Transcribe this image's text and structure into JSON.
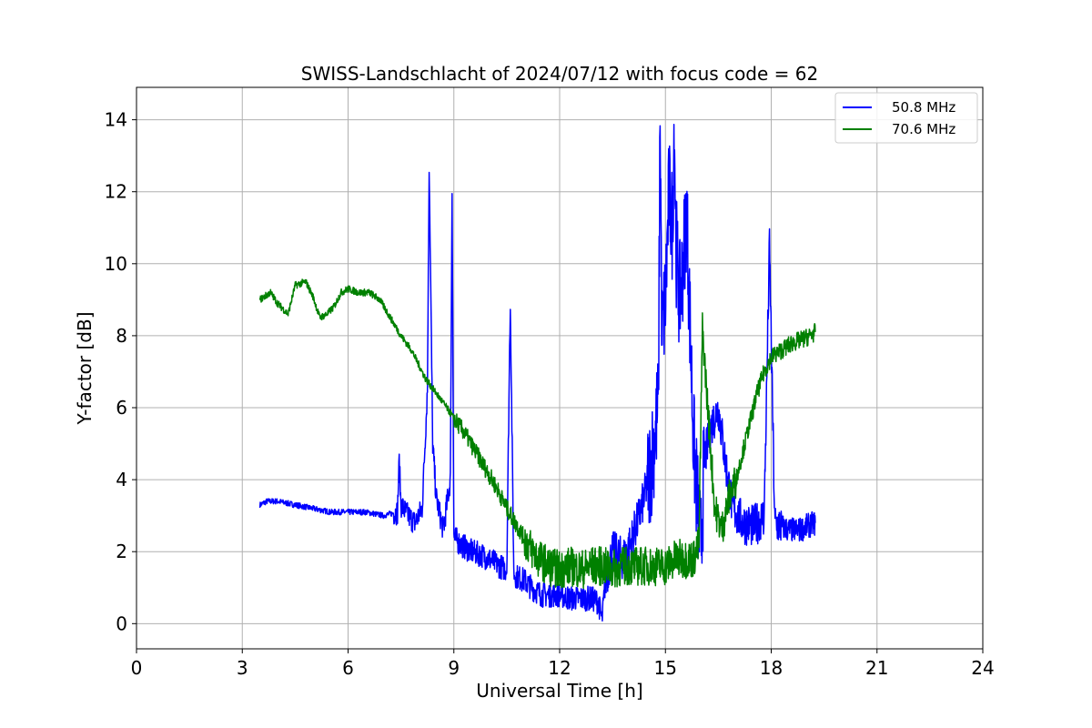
{
  "chart_data": {
    "type": "line",
    "title": "SWISS-Landschlacht of 2024/07/12 with focus code = 62",
    "xlabel": "Universal Time [h]",
    "ylabel": "Y-factor [dB]",
    "xlim": [
      0,
      24
    ],
    "ylim": [
      -0.7,
      14.9
    ],
    "xticks": [
      0,
      3,
      6,
      9,
      12,
      15,
      18,
      21,
      24
    ],
    "xtick_labels": [
      "0",
      "3",
      "6",
      "9",
      "12",
      "15",
      "18",
      "21",
      "24"
    ],
    "yticks": [
      0,
      2,
      4,
      6,
      8,
      10,
      12,
      14
    ],
    "ytick_labels": [
      "0",
      "2",
      "4",
      "6",
      "8",
      "10",
      "12",
      "14"
    ],
    "grid": true,
    "legend_position": "top-right",
    "series": [
      {
        "name": "50.8 MHz",
        "color": "#0000ff",
        "x": [
          3.5,
          3.7,
          4.0,
          4.5,
          5.0,
          5.5,
          6.0,
          6.5,
          7.0,
          7.4,
          7.45,
          7.5,
          7.7,
          7.9,
          8.1,
          8.25,
          8.3,
          8.4,
          8.5,
          8.7,
          8.9,
          8.95,
          9.0,
          9.2,
          9.5,
          9.8,
          10.0,
          10.3,
          10.5,
          10.6,
          10.7,
          10.8,
          11.0,
          11.2,
          11.5,
          11.8,
          12.0,
          12.3,
          12.6,
          12.9,
          13.1,
          13.2,
          13.3,
          13.5,
          13.8,
          14.0,
          14.2,
          14.4,
          14.6,
          14.8,
          14.85,
          14.9,
          15.0,
          15.1,
          15.2,
          15.25,
          15.3,
          15.4,
          15.5,
          15.6,
          15.8,
          16.0,
          16.1,
          16.3,
          16.5,
          16.7,
          16.9,
          17.2,
          17.5,
          17.8,
          17.95,
          18.1,
          18.3,
          18.5,
          18.8,
          19.0,
          19.25
        ],
        "y": [
          3.3,
          3.4,
          3.4,
          3.3,
          3.2,
          3.1,
          3.1,
          3.1,
          3.0,
          3.1,
          4.5,
          3.3,
          3.0,
          2.8,
          3.2,
          6.5,
          12.8,
          5.0,
          3.5,
          2.6,
          4.0,
          12.0,
          2.4,
          2.2,
          2.0,
          1.9,
          1.8,
          1.6,
          1.5,
          9.0,
          1.4,
          1.3,
          1.2,
          1.0,
          0.8,
          0.8,
          0.8,
          0.7,
          0.7,
          0.7,
          0.6,
          0.1,
          1.2,
          2.0,
          1.8,
          2.2,
          2.8,
          3.5,
          4.5,
          6.0,
          14.2,
          8.0,
          9.0,
          12.0,
          11.0,
          14.1,
          10.5,
          9.0,
          10.0,
          11.5,
          5.0,
          2.0,
          4.5,
          5.5,
          6.0,
          4.5,
          3.2,
          2.8,
          2.7,
          3.0,
          10.5,
          2.8,
          2.7,
          2.6,
          2.6,
          2.7,
          2.8
        ]
      },
      {
        "name": "70.6 MHz",
        "color": "#008000",
        "x": [
          3.5,
          3.8,
          4.0,
          4.3,
          4.5,
          4.8,
          5.0,
          5.2,
          5.4,
          5.6,
          5.8,
          6.0,
          6.3,
          6.6,
          6.9,
          7.2,
          7.5,
          7.8,
          8.0,
          8.2,
          8.5,
          8.8,
          9.0,
          9.3,
          9.6,
          9.9,
          10.2,
          10.5,
          10.8,
          11.1,
          11.4,
          11.7,
          12.0,
          12.3,
          12.6,
          12.9,
          13.2,
          13.5,
          13.8,
          14.1,
          14.4,
          14.7,
          15.0,
          15.3,
          15.6,
          15.8,
          15.95,
          16.05,
          16.2,
          16.4,
          16.6,
          16.8,
          17.0,
          17.2,
          17.4,
          17.6,
          17.8,
          18.0,
          18.3,
          18.6,
          18.9,
          19.1,
          19.25
        ],
        "y": [
          9.0,
          9.2,
          8.9,
          8.6,
          9.4,
          9.5,
          9.1,
          8.5,
          8.6,
          8.8,
          9.2,
          9.3,
          9.2,
          9.2,
          9.0,
          8.5,
          8.0,
          7.6,
          7.2,
          6.8,
          6.4,
          6.0,
          5.7,
          5.3,
          4.8,
          4.3,
          3.8,
          3.2,
          2.7,
          2.2,
          1.8,
          1.6,
          1.5,
          1.6,
          1.5,
          1.6,
          1.6,
          1.5,
          1.6,
          1.6,
          1.6,
          1.6,
          1.6,
          1.8,
          1.8,
          1.8,
          2.2,
          8.2,
          6.0,
          3.2,
          2.6,
          3.5,
          4.0,
          4.8,
          5.6,
          6.4,
          7.0,
          7.4,
          7.6,
          7.8,
          7.9,
          8.0,
          8.1
        ]
      }
    ]
  }
}
